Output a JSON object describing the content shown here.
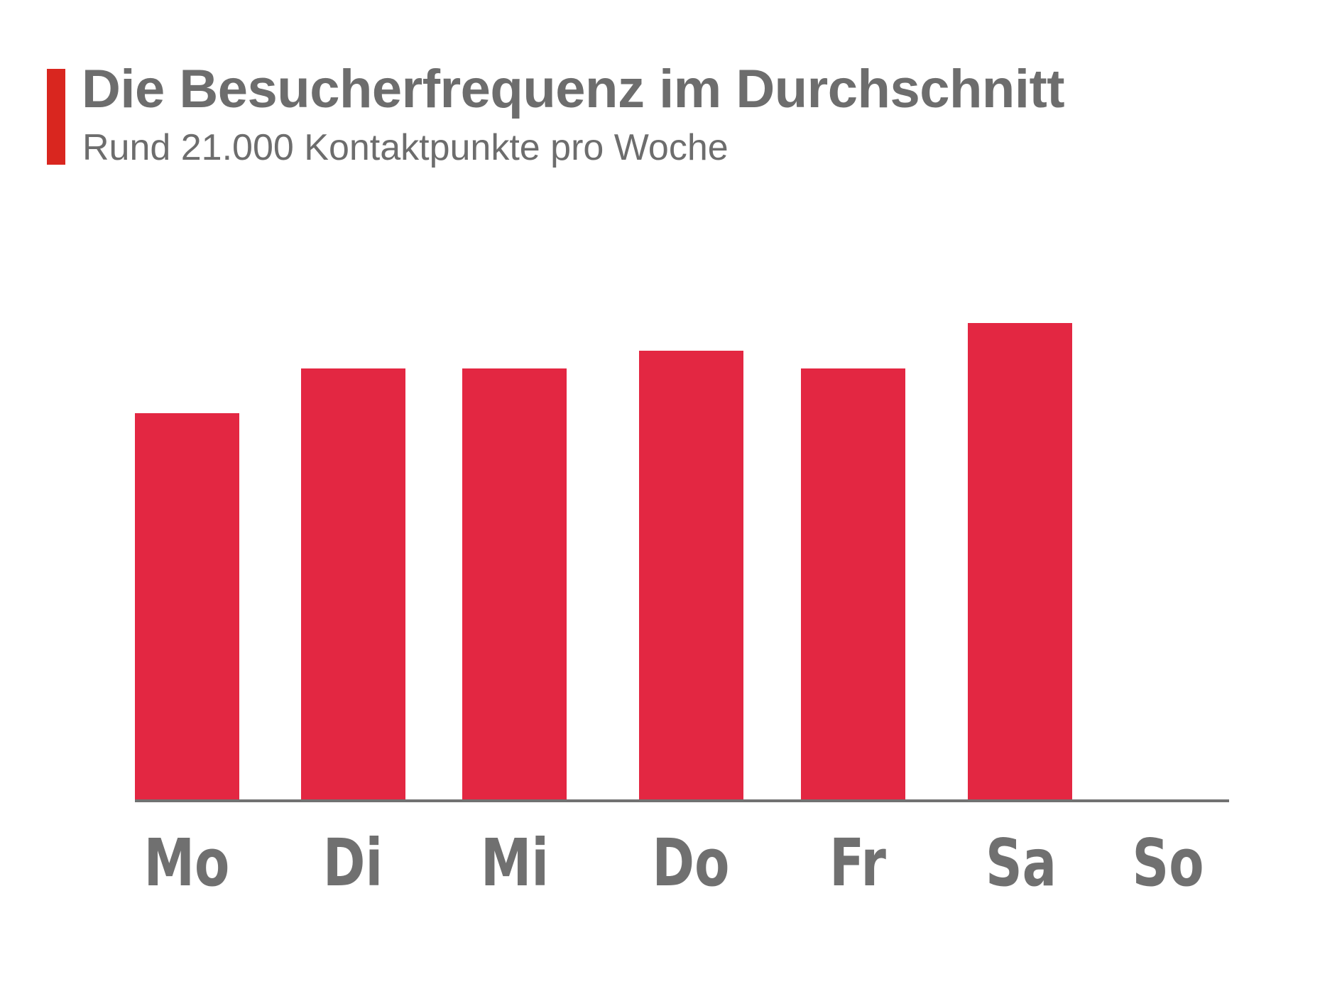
{
  "header": {
    "title": "Die Besucherfrequenz im Durchschnitt",
    "subtitle": "Rund 21.000 Kontaktpunkte pro Woche"
  },
  "colors": {
    "accent": "#d9261f",
    "bar": "#e32742",
    "text": "#6d6d6d",
    "axis": "#727272"
  },
  "chart_data": {
    "type": "bar",
    "title": "Die Besucherfrequenz im Durchschnitt",
    "subtitle": "Rund 21.000 Kontaktpunkte pro Woche",
    "categories": [
      "Mo",
      "Di",
      "Mi",
      "Do",
      "Fr",
      "Sa",
      "So"
    ],
    "values": [
      546,
      609,
      609,
      634,
      609,
      673,
      0
    ],
    "value_unit": "relative bar height (no y-axis scale shown)",
    "xlabel": "",
    "ylabel": "",
    "grid": false,
    "legend": null
  },
  "labels": [
    "Mo",
    "Di",
    "Mi",
    "Do",
    "Fr",
    "Sa",
    "So"
  ]
}
